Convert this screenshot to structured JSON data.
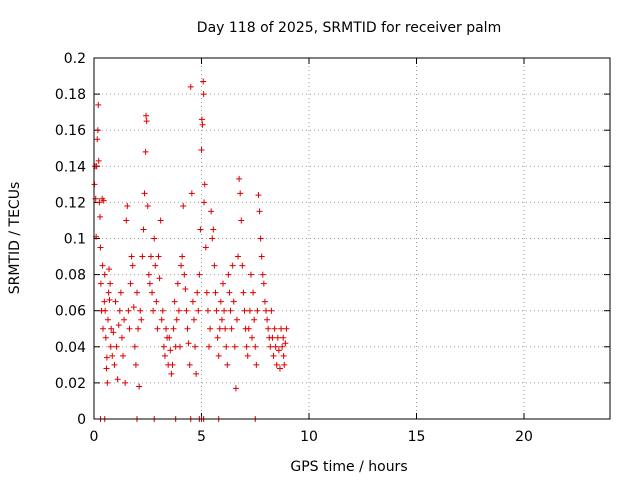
{
  "chart_data": {
    "type": "scatter",
    "title": "Day 118 of 2025, SRMTID for receiver palm",
    "xlabel": "GPS time / hours",
    "ylabel": "SRMTID / TECUs",
    "xlim": [
      0,
      24
    ],
    "ylim": [
      0,
      0.2
    ],
    "xticks": [
      0,
      5,
      10,
      15,
      20
    ],
    "xtick_labels": [
      "0",
      "5",
      "10",
      "15",
      "20"
    ],
    "yticks": [
      0,
      0.02,
      0.04,
      0.06,
      0.08,
      0.1,
      0.12,
      0.14,
      0.16,
      0.18,
      0.2
    ],
    "ytick_labels": [
      "0",
      "0.02",
      "0.04",
      "0.06",
      "0.08",
      "0.1",
      "0.12",
      "0.14",
      "0.16",
      "0.18",
      "0.2"
    ],
    "grid": true,
    "marker": "+",
    "color": "#e00000",
    "series": [
      {
        "name": "SRMTID",
        "points": [
          [
            0.02,
            0.13
          ],
          [
            0.05,
            0.14
          ],
          [
            0.08,
            0.122
          ],
          [
            0.1,
            0.101
          ],
          [
            0.12,
            0.14
          ],
          [
            0.15,
            0.155
          ],
          [
            0.18,
            0.16
          ],
          [
            0.2,
            0.174
          ],
          [
            0.22,
            0.143
          ],
          [
            0.25,
            0.12
          ],
          [
            0.28,
            0.112
          ],
          [
            0.3,
            0.095
          ],
          [
            0.32,
            0.075
          ],
          [
            0.35,
            0.06
          ],
          [
            0.38,
            0.122
          ],
          [
            0.4,
            0.085
          ],
          [
            0.42,
            0.05
          ],
          [
            0.45,
            0.121
          ],
          [
            0.48,
            0.065
          ],
          [
            0.5,
            0.08
          ],
          [
            0.52,
            0.06
          ],
          [
            0.55,
            0.045
          ],
          [
            0.58,
            0.028
          ],
          [
            0.6,
            0.034
          ],
          [
            0.62,
            0.02
          ],
          [
            0.65,
            0.055
          ],
          [
            0.68,
            0.07
          ],
          [
            0.7,
            0.083
          ],
          [
            0.72,
            0.066
          ],
          [
            0.75,
            0.075
          ],
          [
            0.78,
            0.04
          ],
          [
            0.8,
            0.05
          ],
          [
            0.85,
            0.035
          ],
          [
            0.9,
            0.048
          ],
          [
            0.95,
            0.03
          ],
          [
            1.0,
            0.065
          ],
          [
            1.05,
            0.04
          ],
          [
            1.1,
            0.022
          ],
          [
            1.15,
            0.052
          ],
          [
            1.2,
            0.06
          ],
          [
            1.25,
            0.07
          ],
          [
            1.3,
            0.045
          ],
          [
            1.35,
            0.035
          ],
          [
            1.4,
            0.055
          ],
          [
            1.45,
            0.02
          ],
          [
            1.5,
            0.11
          ],
          [
            1.55,
            0.118
          ],
          [
            1.6,
            0.06
          ],
          [
            1.65,
            0.05
          ],
          [
            1.7,
            0.075
          ],
          [
            1.75,
            0.09
          ],
          [
            1.8,
            0.085
          ],
          [
            1.85,
            0.062
          ],
          [
            1.9,
            0.04
          ],
          [
            1.95,
            0.03
          ],
          [
            2.0,
            0.07
          ],
          [
            2.05,
            0.05
          ],
          [
            2.1,
            0.018
          ],
          [
            2.15,
            0.06
          ],
          [
            2.2,
            0.055
          ],
          [
            2.25,
            0.09
          ],
          [
            2.3,
            0.105
          ],
          [
            2.35,
            0.125
          ],
          [
            2.4,
            0.148
          ],
          [
            2.42,
            0.168
          ],
          [
            2.45,
            0.165
          ],
          [
            2.5,
            0.118
          ],
          [
            2.55,
            0.08
          ],
          [
            2.6,
            0.075
          ],
          [
            2.65,
            0.09
          ],
          [
            2.7,
            0.07
          ],
          [
            2.75,
            0.06
          ],
          [
            2.8,
            0.1
          ],
          [
            2.85,
            0.085
          ],
          [
            2.9,
            0.065
          ],
          [
            2.95,
            0.05
          ],
          [
            3.0,
            0.09
          ],
          [
            3.05,
            0.078
          ],
          [
            3.1,
            0.11
          ],
          [
            3.15,
            0.055
          ],
          [
            3.2,
            0.06
          ],
          [
            3.25,
            0.04
          ],
          [
            3.3,
            0.035
          ],
          [
            3.35,
            0.05
          ],
          [
            3.4,
            0.045
          ],
          [
            3.45,
            0.03
          ],
          [
            3.5,
            0.045
          ],
          [
            3.55,
            0.038
          ],
          [
            3.6,
            0.025
          ],
          [
            3.65,
            0.03
          ],
          [
            3.7,
            0.05
          ],
          [
            3.75,
            0.065
          ],
          [
            3.8,
            0.04
          ],
          [
            3.85,
            0.055
          ],
          [
            3.9,
            0.075
          ],
          [
            3.95,
            0.06
          ],
          [
            4.0,
            0.04
          ],
          [
            4.05,
            0.085
          ],
          [
            4.1,
            0.09
          ],
          [
            4.15,
            0.118
          ],
          [
            4.2,
            0.08
          ],
          [
            4.25,
            0.072
          ],
          [
            4.3,
            0.06
          ],
          [
            4.35,
            0.05
          ],
          [
            4.4,
            0.042
          ],
          [
            4.45,
            0.03
          ],
          [
            4.5,
            0.184
          ],
          [
            4.55,
            0.125
          ],
          [
            4.6,
            0.065
          ],
          [
            4.65,
            0.055
          ],
          [
            4.7,
            0.04
          ],
          [
            4.75,
            0.025
          ],
          [
            4.8,
            0.07
          ],
          [
            4.85,
            0.06
          ],
          [
            4.9,
            0.08
          ],
          [
            4.95,
            0.105
          ],
          [
            5.0,
            0.149
          ],
          [
            5.02,
            0.166
          ],
          [
            5.05,
            0.163
          ],
          [
            5.08,
            0.187
          ],
          [
            5.1,
            0.18
          ],
          [
            5.12,
            0.12
          ],
          [
            5.15,
            0.13
          ],
          [
            5.2,
            0.095
          ],
          [
            5.25,
            0.07
          ],
          [
            5.3,
            0.06
          ],
          [
            5.35,
            0.04
          ],
          [
            5.4,
            0.05
          ],
          [
            5.45,
            0.115
          ],
          [
            5.5,
            0.1
          ],
          [
            5.55,
            0.105
          ],
          [
            5.6,
            0.085
          ],
          [
            5.65,
            0.07
          ],
          [
            5.7,
            0.06
          ],
          [
            5.75,
            0.045
          ],
          [
            5.8,
            0.035
          ],
          [
            5.85,
            0.05
          ],
          [
            5.9,
            0.065
          ],
          [
            5.95,
            0.055
          ],
          [
            6.0,
            0.075
          ],
          [
            6.05,
            0.06
          ],
          [
            6.1,
            0.05
          ],
          [
            6.15,
            0.04
          ],
          [
            6.2,
            0.03
          ],
          [
            6.25,
            0.08
          ],
          [
            6.3,
            0.07
          ],
          [
            6.35,
            0.06
          ],
          [
            6.4,
            0.05
          ],
          [
            6.45,
            0.085
          ],
          [
            6.5,
            0.065
          ],
          [
            6.55,
            0.04
          ],
          [
            6.6,
            0.017
          ],
          [
            6.65,
            0.055
          ],
          [
            6.7,
            0.09
          ],
          [
            6.75,
            0.133
          ],
          [
            6.8,
            0.125
          ],
          [
            6.85,
            0.11
          ],
          [
            6.9,
            0.085
          ],
          [
            6.95,
            0.07
          ],
          [
            7.0,
            0.06
          ],
          [
            7.05,
            0.05
          ],
          [
            7.1,
            0.04
          ],
          [
            7.15,
            0.035
          ],
          [
            7.2,
            0.05
          ],
          [
            7.25,
            0.06
          ],
          [
            7.3,
            0.08
          ],
          [
            7.35,
            0.045
          ],
          [
            7.4,
            0.07
          ],
          [
            7.45,
            0.055
          ],
          [
            7.5,
            0.04
          ],
          [
            7.55,
            0.03
          ],
          [
            7.6,
            0.06
          ],
          [
            7.65,
            0.124
          ],
          [
            7.7,
            0.115
          ],
          [
            7.75,
            0.1
          ],
          [
            7.8,
            0.09
          ],
          [
            7.85,
            0.08
          ],
          [
            7.9,
            0.075
          ],
          [
            7.95,
            0.065
          ],
          [
            8.0,
            0.06
          ],
          [
            8.05,
            0.055
          ],
          [
            8.1,
            0.05
          ],
          [
            8.15,
            0.045
          ],
          [
            8.2,
            0.04
          ],
          [
            8.25,
            0.06
          ],
          [
            8.3,
            0.045
          ],
          [
            8.35,
            0.035
          ],
          [
            8.4,
            0.05
          ],
          [
            8.45,
            0.04
          ],
          [
            8.5,
            0.03
          ],
          [
            8.55,
            0.045
          ],
          [
            8.6,
            0.038
          ],
          [
            8.65,
            0.028
          ],
          [
            8.7,
            0.05
          ],
          [
            8.75,
            0.04
          ],
          [
            8.8,
            0.045
          ],
          [
            8.82,
            0.035
          ],
          [
            8.85,
            0.03
          ],
          [
            8.9,
            0.042
          ],
          [
            8.95,
            0.05
          ]
        ],
        "zero_points_x": [
          0.3,
          0.5,
          2.0,
          2.8,
          3.8,
          4.5,
          4.9,
          5.0,
          5.1,
          5.8,
          7.5
        ]
      }
    ]
  }
}
